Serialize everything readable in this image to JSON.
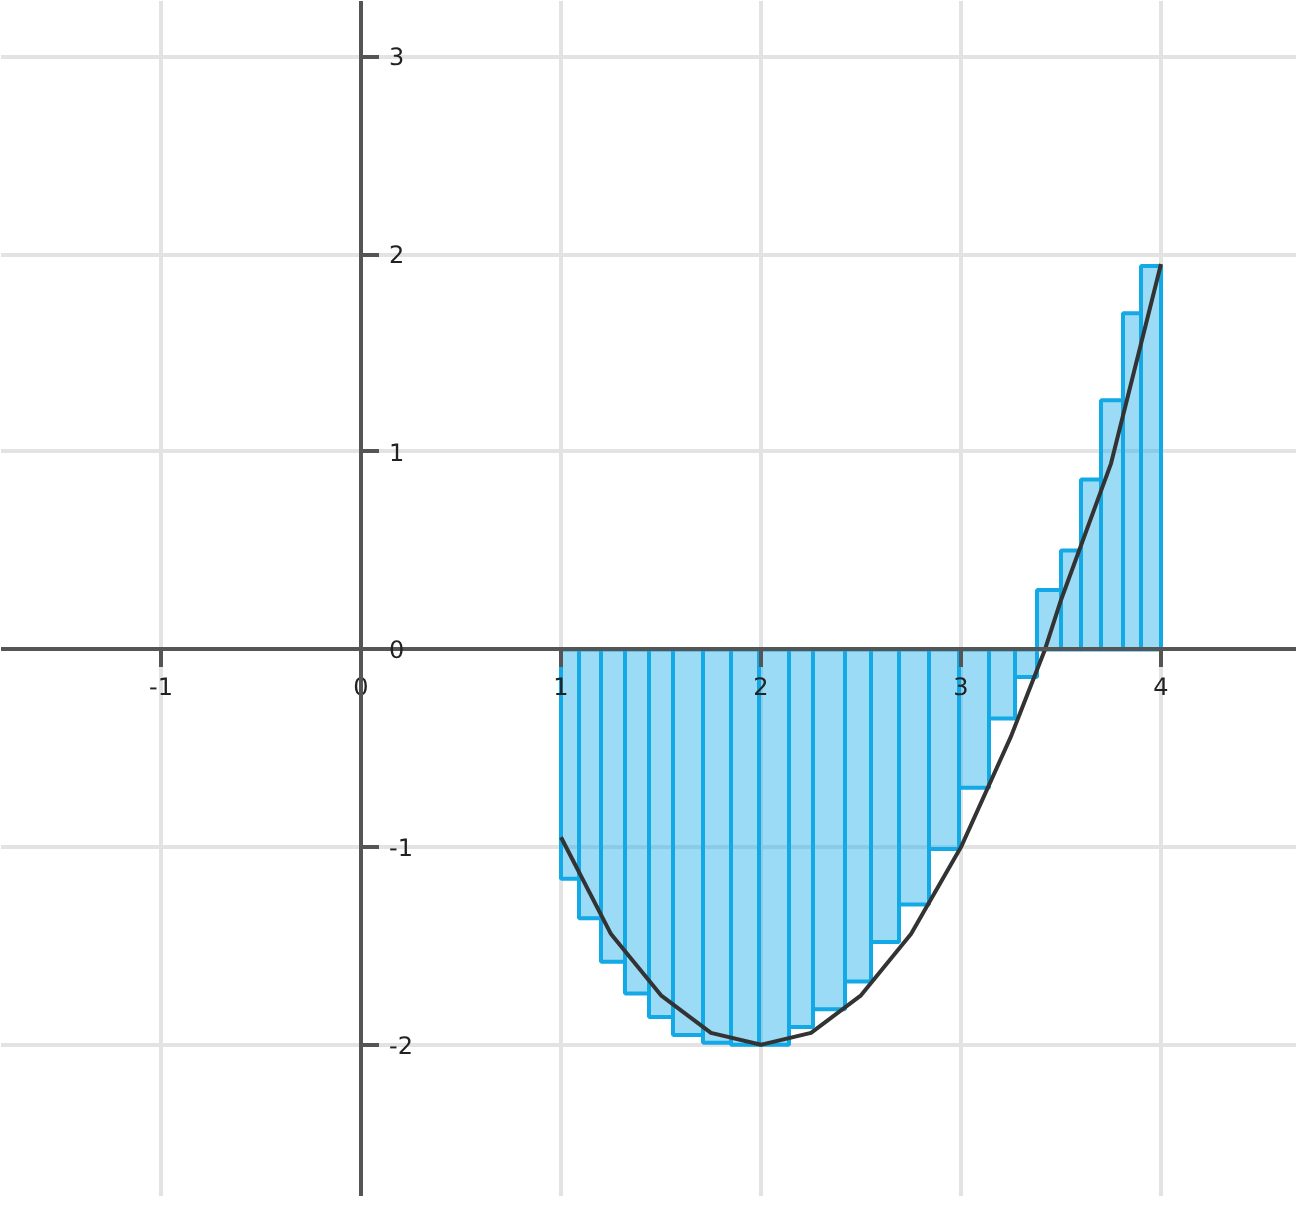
{
  "chart_data": {
    "type": "histogram",
    "xlim": [
      -1.8,
      4.68
    ],
    "ylim": [
      -2.77,
      3.28
    ],
    "xticks": [
      -1,
      0,
      1,
      2,
      3,
      4
    ],
    "yticks": [
      -2,
      -1,
      0,
      1,
      2,
      3
    ],
    "grid": true,
    "series": [
      {
        "type": "histogram",
        "color": "#12a9e6",
        "bins": [
          1.0,
          1.09,
          1.2,
          1.32,
          1.44,
          1.56,
          1.71,
          1.85,
          1.99,
          2.14,
          2.26,
          2.42,
          2.55,
          2.69,
          2.84,
          2.99,
          3.14,
          3.27,
          3.38,
          3.5,
          3.6,
          3.7,
          3.81,
          3.9,
          4.0
        ],
        "values": [
          -1.16,
          -1.36,
          -1.58,
          -1.74,
          -1.86,
          -1.95,
          -1.99,
          -2.0,
          -2.0,
          -1.91,
          -1.82,
          -1.68,
          -1.48,
          -1.29,
          -1.01,
          -0.7,
          -0.35,
          -0.14,
          0.3,
          0.5,
          0.86,
          1.26,
          1.7,
          1.94
        ]
      },
      {
        "type": "line",
        "color": "#333333",
        "x": [
          1,
          1.25,
          1.5,
          1.75,
          2,
          2.25,
          2.5,
          2.75,
          3,
          3.25,
          3.42,
          3.5,
          3.75,
          4
        ],
        "values": [
          -0.95,
          -1.44,
          -1.75,
          -1.94,
          -2.0,
          -1.94,
          -1.75,
          -1.44,
          -1.0,
          -0.44,
          0,
          0.25,
          0.94,
          1.95
        ]
      }
    ]
  }
}
